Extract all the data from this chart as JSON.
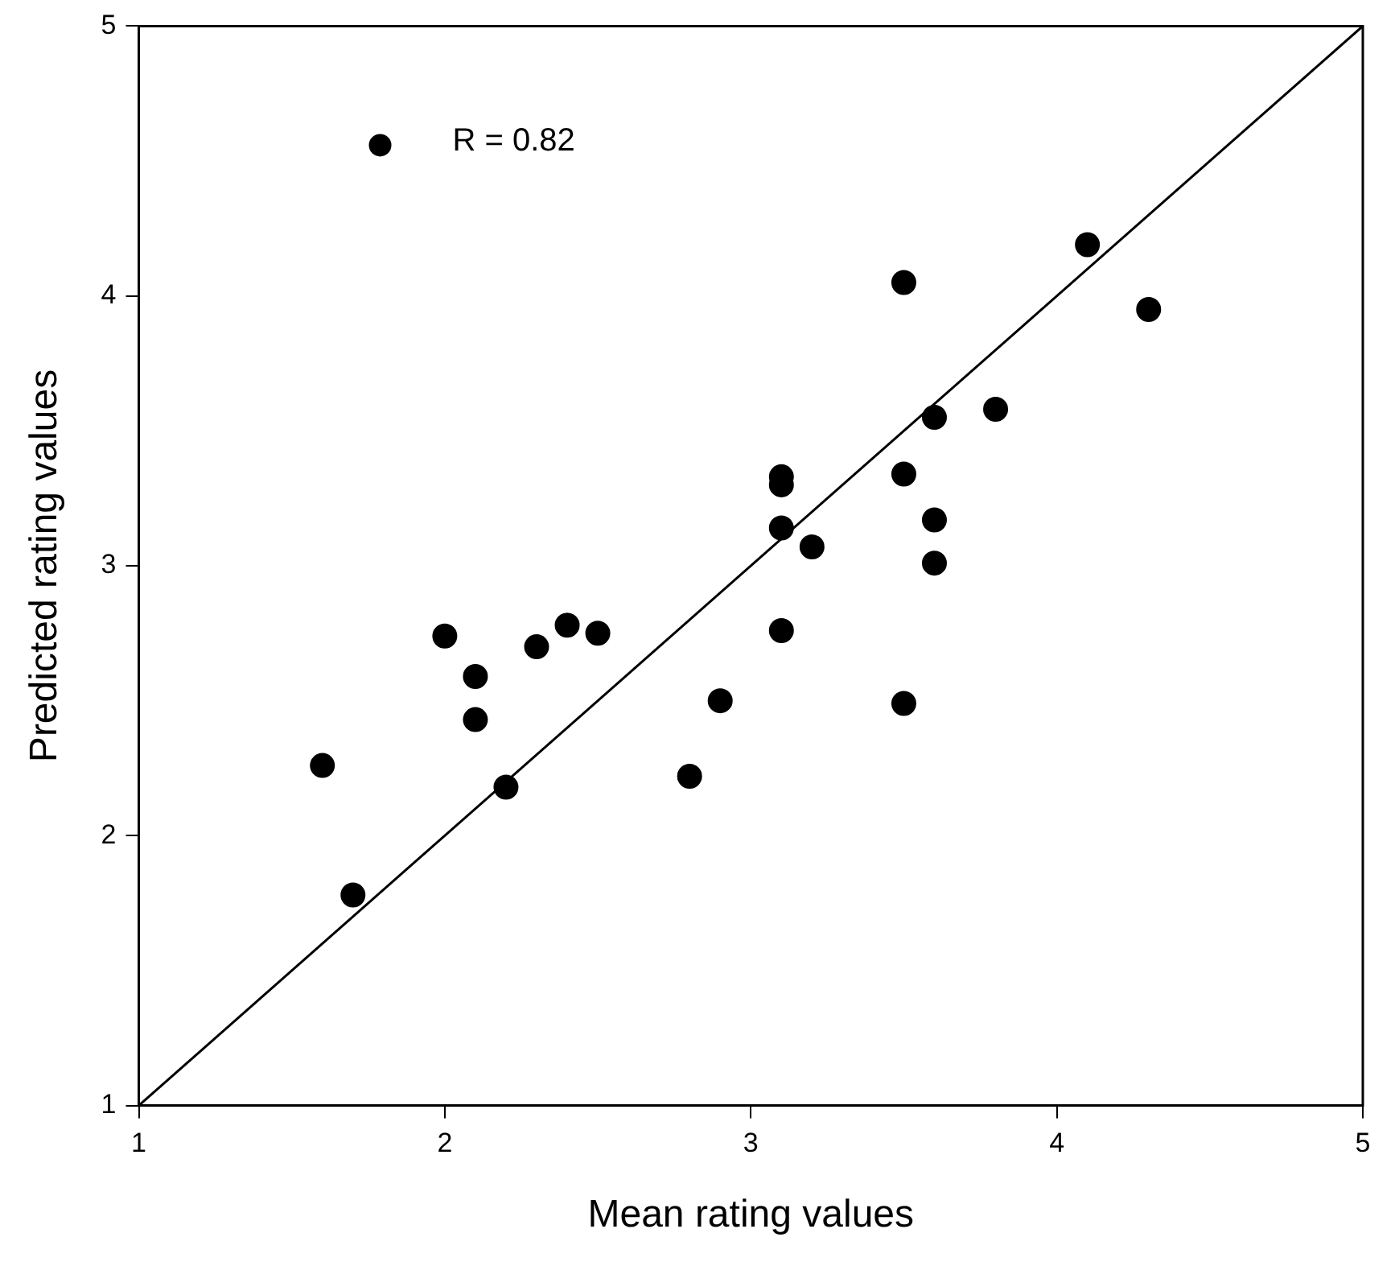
{
  "chart_data": {
    "type": "scatter",
    "xlabel": "Mean rating values",
    "ylabel": "Predicted rating values",
    "xlim": [
      1,
      5
    ],
    "ylim": [
      1,
      5
    ],
    "xticks": [
      1,
      2,
      3,
      4,
      5
    ],
    "yticks": [
      1,
      2,
      3,
      4,
      5
    ],
    "grid": false,
    "legend": "top left",
    "marker": "circle",
    "series": [
      {
        "name": "R = 0.82",
        "color": "#000000",
        "x": [
          1.6,
          1.7,
          2.0,
          2.1,
          2.1,
          2.2,
          2.3,
          2.4,
          2.5,
          2.8,
          2.9,
          3.1,
          3.1,
          3.1,
          3.1,
          3.2,
          3.5,
          3.5,
          3.5,
          3.6,
          3.6,
          3.6,
          3.8,
          4.1,
          4.3
        ],
        "values": [
          2.26,
          1.78,
          2.74,
          2.59,
          2.43,
          2.18,
          2.7,
          2.78,
          2.75,
          2.22,
          2.5,
          3.33,
          3.3,
          3.14,
          2.76,
          3.07,
          4.05,
          3.34,
          2.49,
          3.55,
          3.17,
          3.01,
          3.58,
          4.19,
          3.95
        ]
      },
      {
        "type": "line",
        "color": "#000000",
        "line_style": "solid",
        "marker": "none",
        "x": [
          1,
          5
        ],
        "values": [
          1,
          5
        ]
      }
    ]
  }
}
